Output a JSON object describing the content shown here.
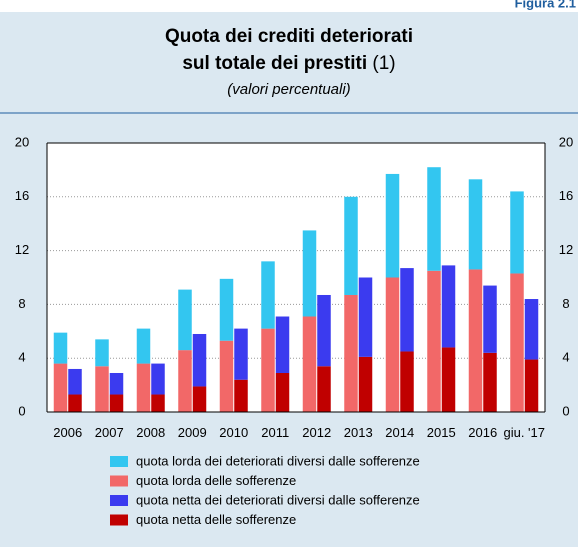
{
  "chart_data": {
    "type": "stacked-bar",
    "figure_label": "Figura 2.1",
    "title_line1": "Quota dei crediti deteriorati",
    "title_line2": "sul totale dei prestiti",
    "title_note": "(1)",
    "subtitle": "(valori percentuali)",
    "categories": [
      "2006",
      "2007",
      "2008",
      "2009",
      "2010",
      "2011",
      "2012",
      "2013",
      "2014",
      "2015",
      "2016",
      "giu. '17"
    ],
    "ylim": [
      0,
      20
    ],
    "yticks": [
      0,
      4,
      8,
      12,
      16,
      20
    ],
    "grid": true,
    "series": [
      {
        "name": "quota lorda dei deteriorati diversi dalle sofferenze",
        "color": "#33c6f0",
        "stack": "gross",
        "values": [
          2.3,
          2.0,
          2.6,
          4.5,
          4.6,
          5.0,
          6.4,
          7.3,
          7.7,
          7.7,
          6.7,
          6.1
        ]
      },
      {
        "name": "quota lorda delle sofferenze",
        "color": "#f26868",
        "stack": "gross",
        "values": [
          3.6,
          3.4,
          3.6,
          4.6,
          5.3,
          6.2,
          7.1,
          8.7,
          10.0,
          10.5,
          10.6,
          10.3
        ]
      },
      {
        "name": "quota netta dei deteriorati diversi dalle sofferenze",
        "color": "#3b3bef",
        "stack": "net",
        "values": [
          1.9,
          1.6,
          2.3,
          3.9,
          3.8,
          4.2,
          5.3,
          5.9,
          6.2,
          6.1,
          5.0,
          4.5
        ]
      },
      {
        "name": "quota netta delle sofferenze",
        "color": "#c00000",
        "stack": "net",
        "values": [
          1.3,
          1.3,
          1.3,
          1.9,
          2.4,
          2.9,
          3.4,
          4.1,
          4.5,
          4.8,
          4.4,
          3.9
        ]
      }
    ]
  }
}
